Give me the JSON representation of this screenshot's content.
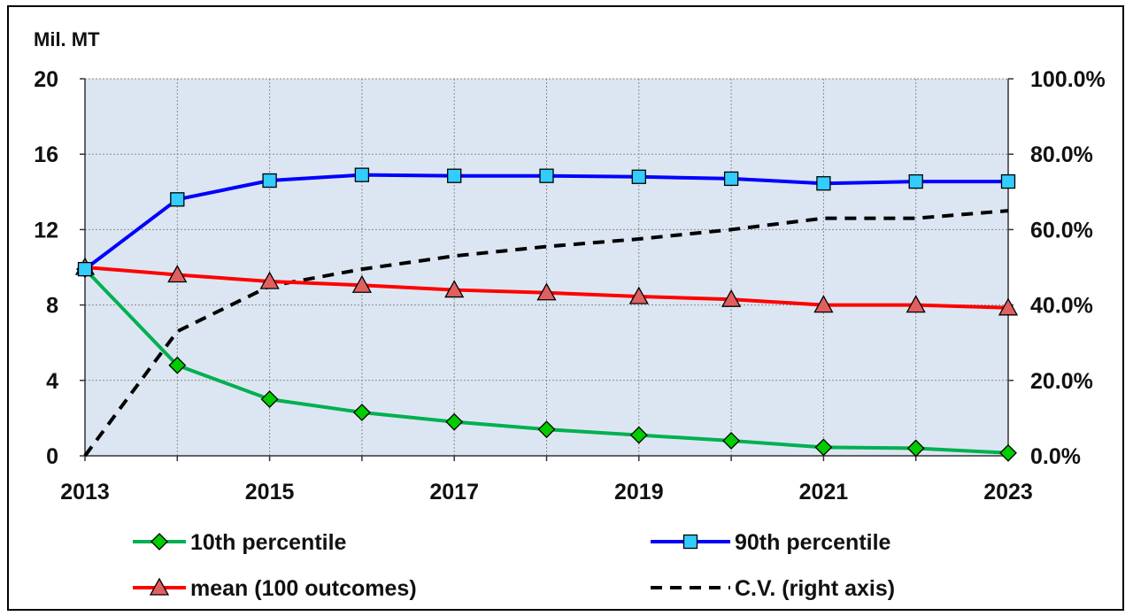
{
  "chart_data": {
    "type": "line",
    "title": "",
    "left_axis_unit": "Mil. MT",
    "xlabel": "",
    "ylabel": "",
    "x": [
      2013,
      2014,
      2015,
      2016,
      2017,
      2018,
      2019,
      2020,
      2021,
      2022,
      2023
    ],
    "x_tick_labels": [
      "2013",
      "2015",
      "2017",
      "2019",
      "2021",
      "2023"
    ],
    "xlim": [
      2013,
      2023
    ],
    "ylim": [
      0,
      20
    ],
    "y_ticks": [
      0,
      4,
      8,
      12,
      16,
      20
    ],
    "y_tick_labels": [
      "0",
      "4",
      "8",
      "12",
      "16",
      "20"
    ],
    "y2lim": [
      0,
      1.0
    ],
    "y2_tick_labels": [
      "0.0%",
      "20.0%",
      "40.0%",
      "60.0%",
      "80.0%",
      "100.0%"
    ],
    "grid": true,
    "legend_position": "bottom",
    "series": [
      {
        "name": "10th percentile",
        "axis": "left",
        "color": "#00B050",
        "marker": "diamond",
        "marker_color": "#00CC00",
        "values": [
          9.9,
          4.8,
          3.0,
          2.3,
          1.8,
          1.4,
          1.1,
          0.8,
          0.45,
          0.4,
          0.15
        ]
      },
      {
        "name": "90th percentile",
        "axis": "left",
        "color": "#0000FF",
        "marker": "square",
        "marker_color": "#33CCFF",
        "values": [
          9.9,
          13.6,
          14.6,
          14.9,
          14.85,
          14.85,
          14.8,
          14.7,
          14.45,
          14.55,
          14.55
        ]
      },
      {
        "name": "mean (100 outcomes)",
        "axis": "left",
        "color": "#FF0000",
        "marker": "triangle",
        "marker_color": "#E06060",
        "values": [
          10.0,
          9.6,
          9.25,
          9.05,
          8.8,
          8.65,
          8.45,
          8.3,
          8.0,
          8.0,
          7.85
        ]
      },
      {
        "name": "C.V.  (right axis)",
        "axis": "right",
        "color": "#000000",
        "dash": true,
        "values": [
          0.0,
          0.33,
          0.45,
          0.495,
          0.53,
          0.555,
          0.575,
          0.6,
          0.63,
          0.63,
          0.65
        ]
      }
    ]
  }
}
